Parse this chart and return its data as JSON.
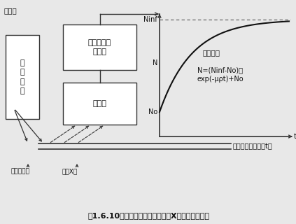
{
  "title": "図1.6.10　放射線式厘さ計（蛍光X線形）の構成例",
  "label_sokutei": "測定値",
  "label_energy": "エネルギー\n弁別器",
  "label_detector": "検出器",
  "label_source": "放\n射\n線\n源",
  "label_material": "被測定物（厘さ：t）",
  "label_excite": "助起放射線",
  "label_fluor": "蛍光X線",
  "label_graph_title": "検出強度",
  "label_graph_eq1": "N=(Ninf-No)・",
  "label_graph_eq2": "exp(-μρt)+No",
  "label_Ninf": "Ninf",
  "label_N": "N",
  "label_No": "No",
  "label_t": "t",
  "bg_color": "#e8e8e8",
  "box_fc": "#ffffff",
  "box_ec": "#333333",
  "line_color": "#333333",
  "text_color": "#111111",
  "curve_color": "#111111"
}
